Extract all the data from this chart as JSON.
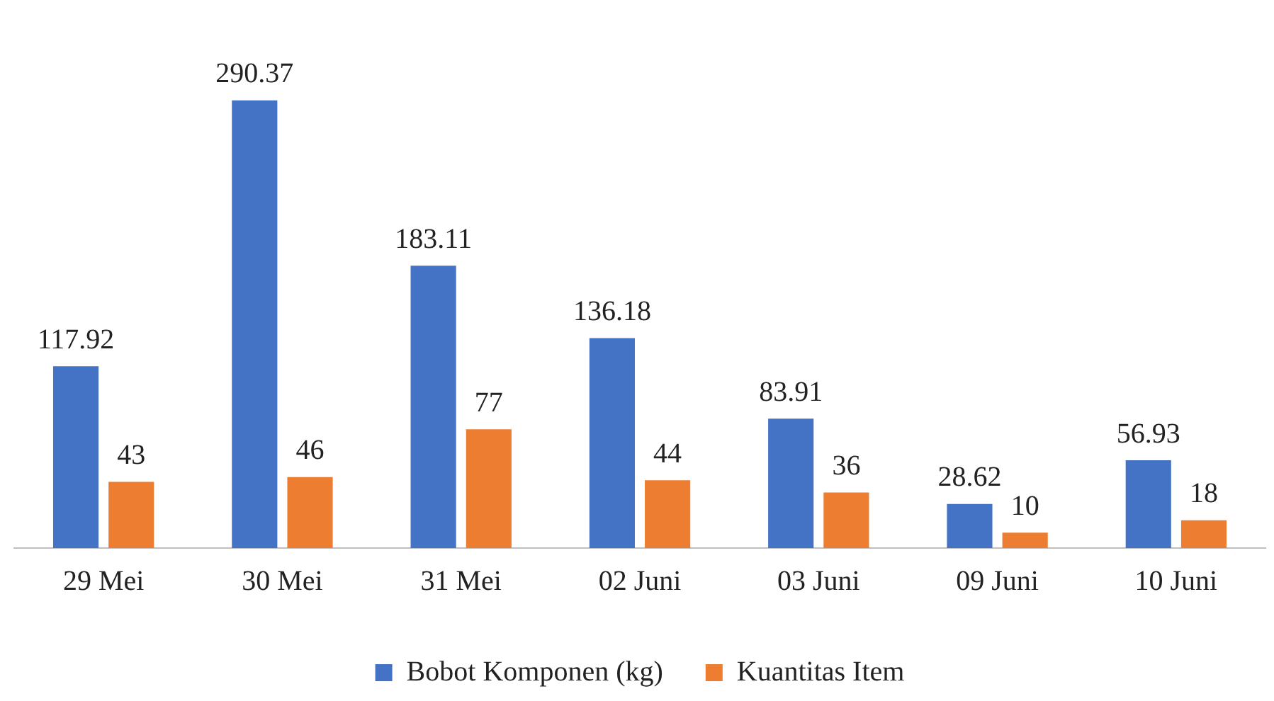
{
  "chart_data": {
    "type": "bar",
    "categories": [
      "29 Mei",
      "30 Mei",
      "31 Mei",
      "02 Juni",
      "03 Juni",
      "09 Juni",
      "10 Juni"
    ],
    "series": [
      {
        "name": "Bobot Komponen (kg)",
        "color": "#4472c4",
        "values": [
          117.92,
          290.37,
          183.11,
          136.18,
          83.91,
          28.62,
          56.93
        ]
      },
      {
        "name": "Kuantitas Item",
        "color": "#ed7d31",
        "values": [
          43,
          46,
          77,
          44,
          36,
          10,
          18
        ]
      }
    ],
    "tick_labels": "x",
    "data_labels": true,
    "legend": "bottom",
    "grid": false
  }
}
